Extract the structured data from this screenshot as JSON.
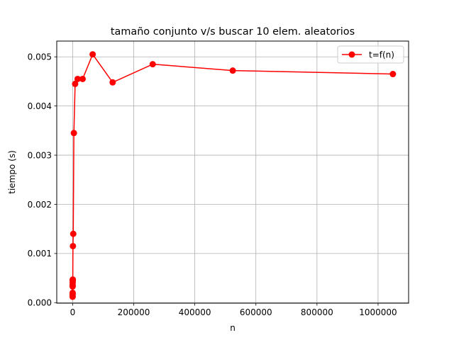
{
  "chart_data": {
    "type": "line",
    "title": "tamaño conjunto v/s buscar 10 elem. aleatorios",
    "xlabel": "n",
    "ylabel": "tiempo (s)",
    "xlim": [
      -52000,
      1100000
    ],
    "ylim": [
      -1e-05,
      0.00532
    ],
    "xticks": [
      0,
      200000,
      400000,
      600000,
      800000,
      1000000
    ],
    "xtick_labels": [
      "0",
      "200000",
      "400000",
      "600000",
      "800000",
      "1000000"
    ],
    "yticks": [
      0.0,
      0.001,
      0.002,
      0.003,
      0.004,
      0.005
    ],
    "ytick_labels": [
      "0.000",
      "0.001",
      "0.002",
      "0.003",
      "0.004",
      "0.005"
    ],
    "grid": true,
    "legend_position": "top-right",
    "series": [
      {
        "name": "t=f(n)",
        "color": "#ff0000",
        "marker": "circle",
        "x": [
          2,
          4,
          8,
          16,
          32,
          64,
          128,
          256,
          512,
          1024,
          2048,
          4096,
          8192,
          16384,
          32768,
          65536,
          131072,
          262144,
          524288,
          1048576
        ],
        "y": [
          0.00012,
          0.00015,
          0.00018,
          0.0002,
          0.00033,
          0.00036,
          0.00041,
          0.00045,
          0.00047,
          0.00115,
          0.0014,
          0.00345,
          0.00445,
          0.00455,
          0.00455,
          0.00505,
          0.00448,
          0.00485,
          0.00472,
          0.00465
        ]
      }
    ]
  }
}
